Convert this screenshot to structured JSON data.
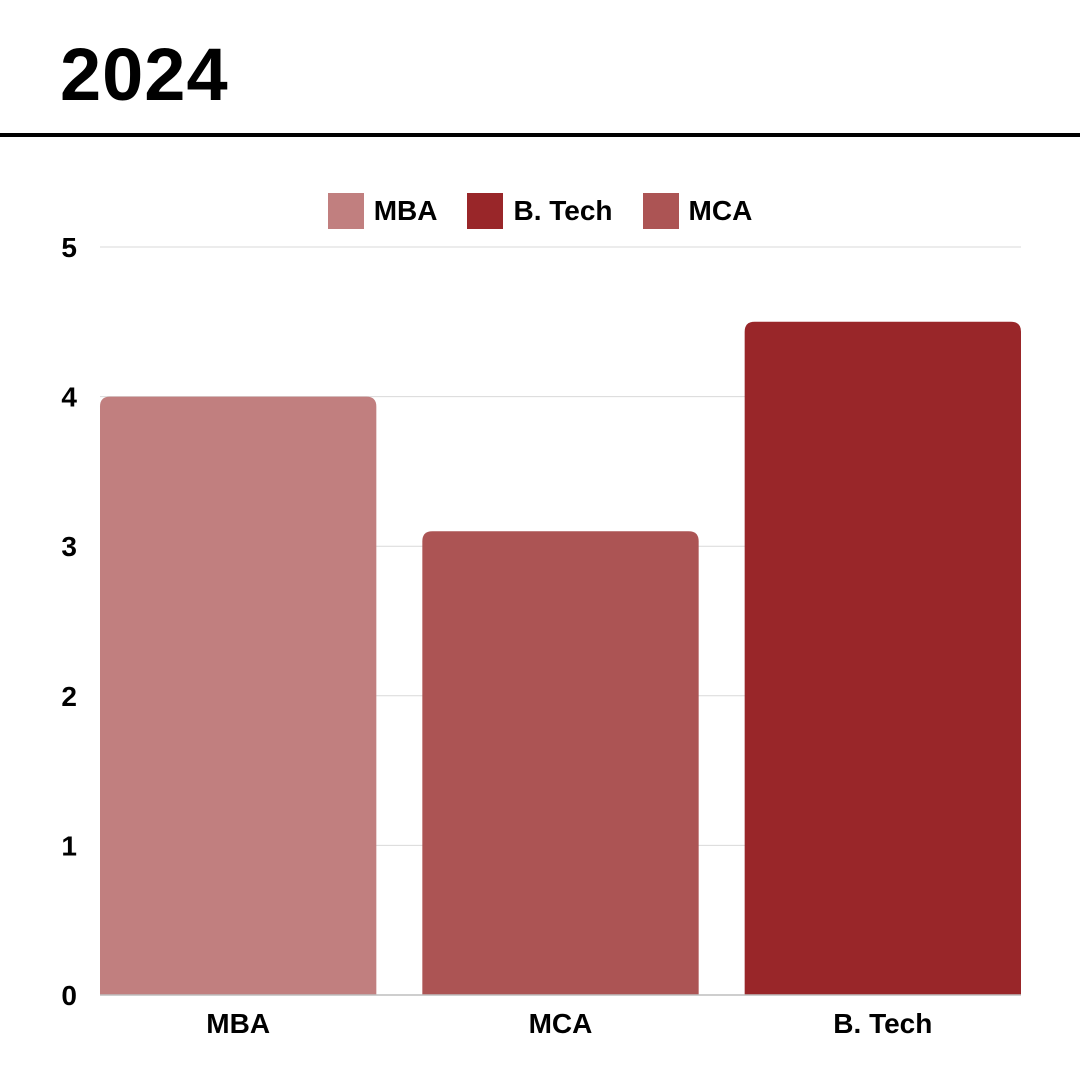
{
  "page": {
    "title": "2024"
  },
  "chart_data": {
    "type": "bar",
    "title": "2024",
    "xlabel": "",
    "ylabel": "",
    "categories": [
      "MBA",
      "MCA",
      "B. Tech"
    ],
    "values": [
      4.0,
      3.1,
      4.5
    ],
    "bar_colors": [
      "#c17f7f",
      "#ac5454",
      "#992629"
    ],
    "ylim": [
      0,
      5
    ],
    "yticks": [
      0,
      1,
      2,
      3,
      4,
      5
    ],
    "ytick_labels": [
      "0",
      "1",
      "2",
      "3",
      "4",
      "5"
    ],
    "grid": true,
    "legend_position": "top-center",
    "legend": [
      {
        "label": "MBA",
        "color": "#c17f7f"
      },
      {
        "label": "B. Tech",
        "color": "#992629"
      },
      {
        "label": "MCA",
        "color": "#ac5454"
      }
    ]
  }
}
